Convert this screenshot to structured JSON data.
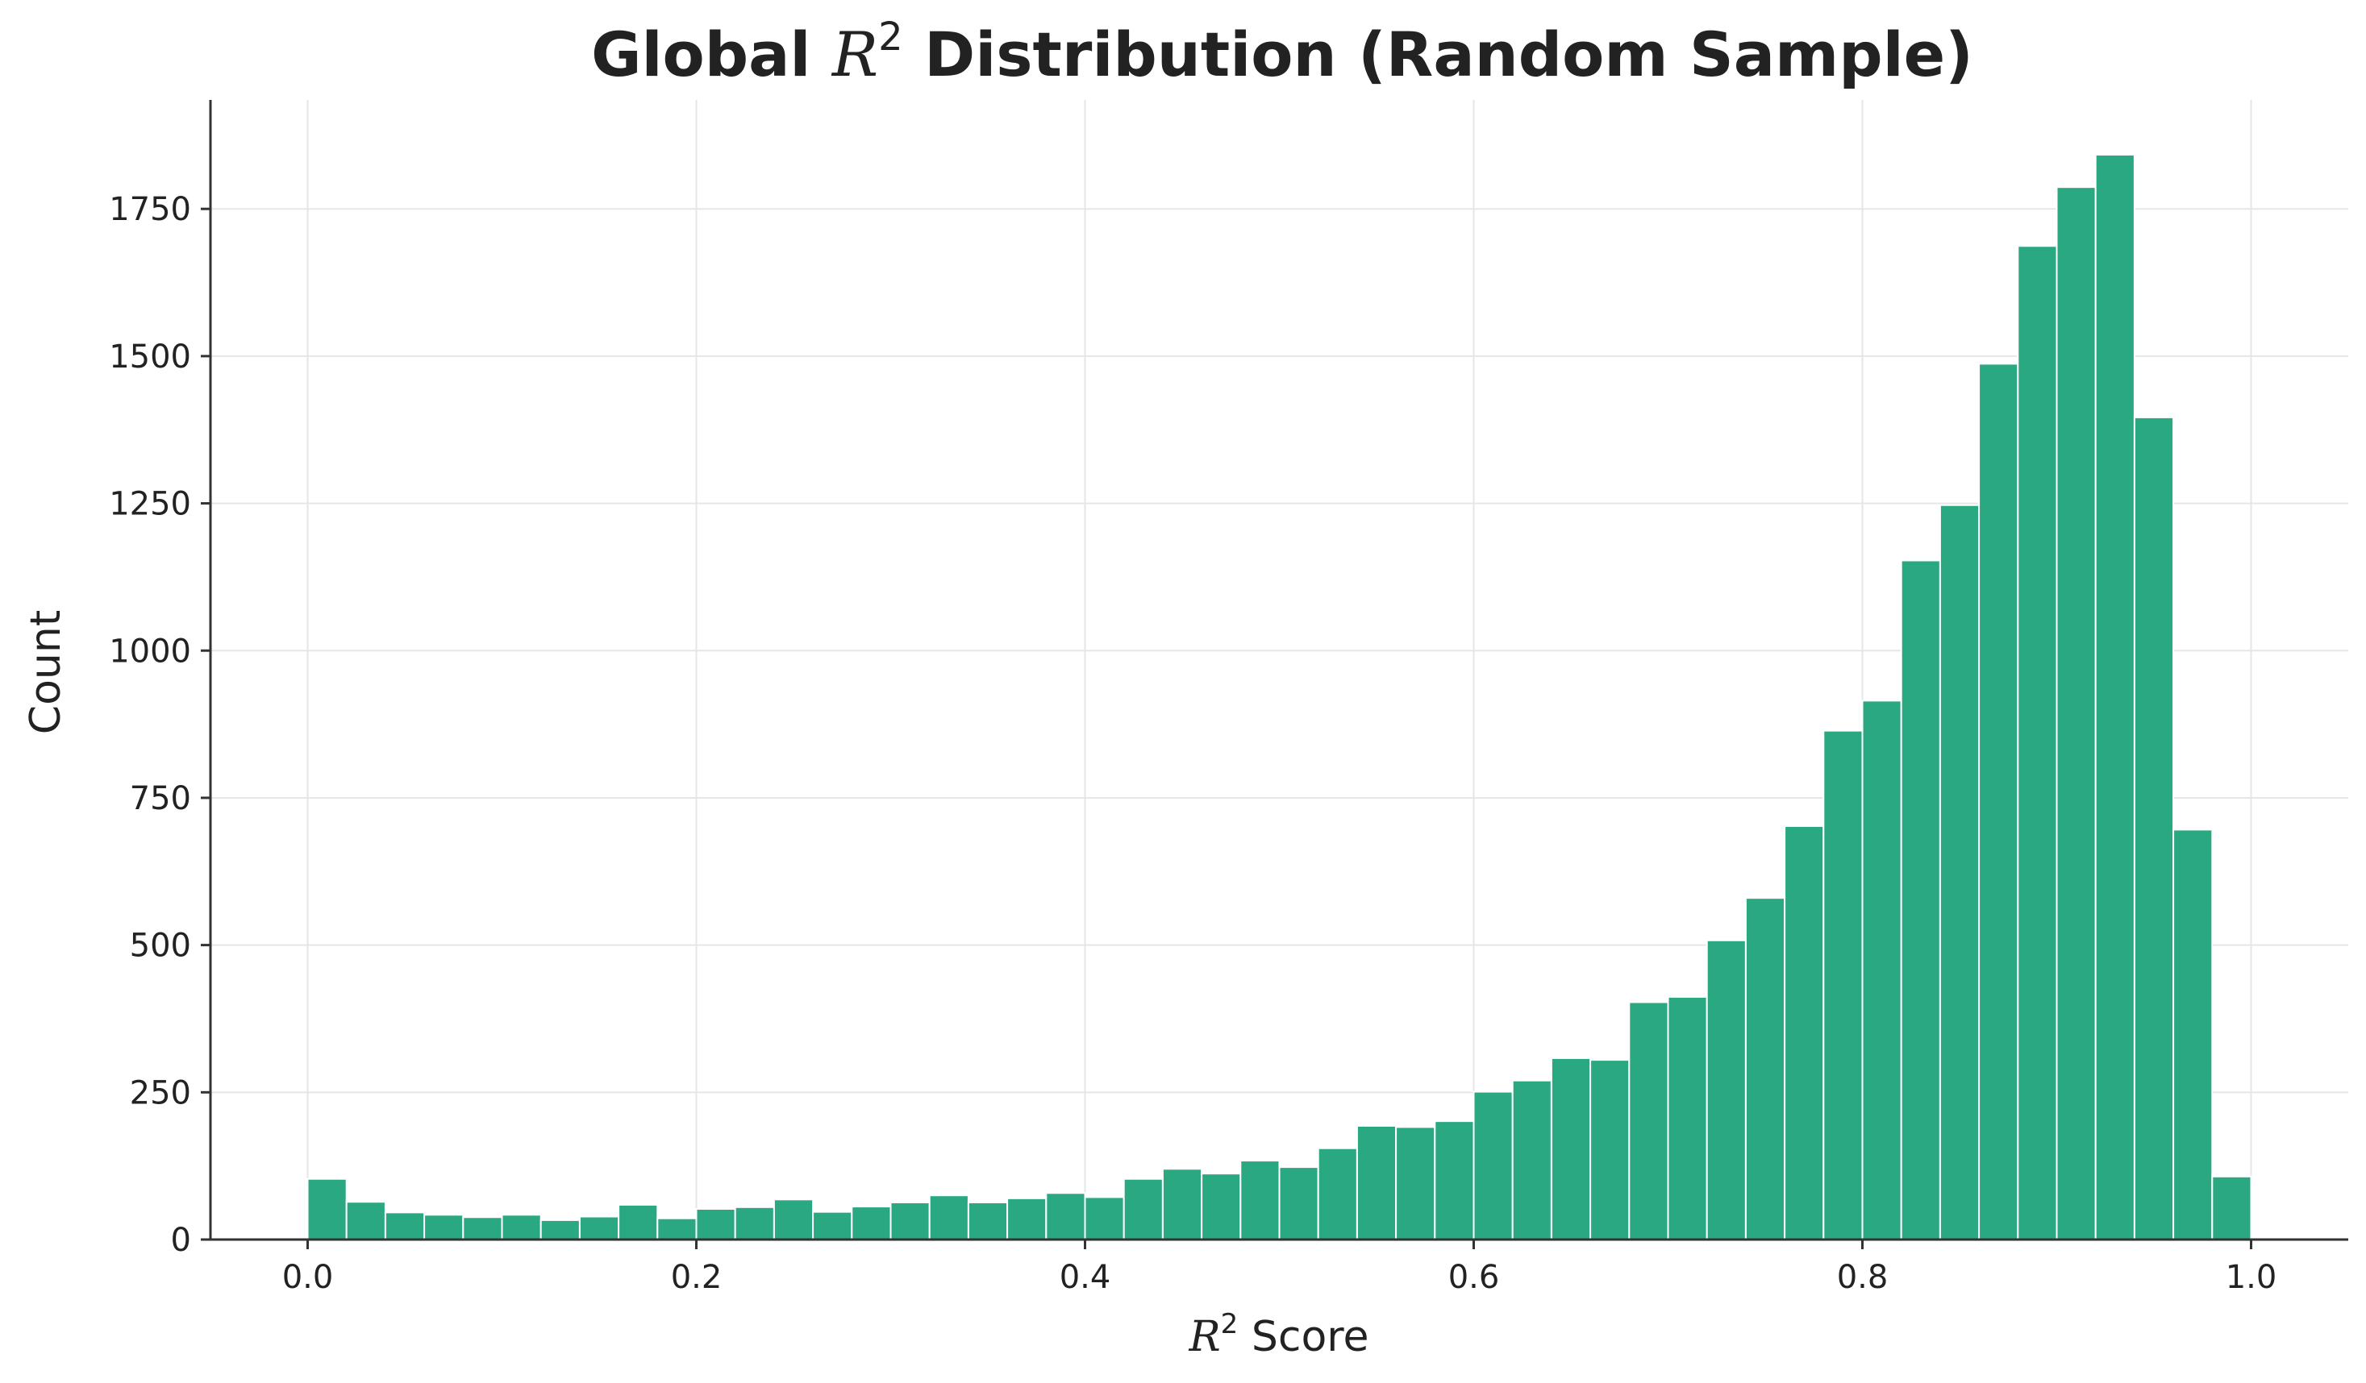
{
  "chart_data": {
    "type": "bar",
    "title_prefix": "Global ",
    "title_symbol": "R",
    "title_superscript": "2",
    "title_suffix": " Distribution (Random Sample)",
    "xlabel_symbol": "R",
    "xlabel_superscript": "2",
    "xlabel_suffix": " Score",
    "ylabel": "Count",
    "xlim": [
      -0.05,
      1.05
    ],
    "ylim": [
      0,
      1935
    ],
    "xticks": [
      "0.0",
      "0.2",
      "0.4",
      "0.6",
      "0.8",
      "1.0"
    ],
    "xtick_values": [
      0.0,
      0.2,
      0.4,
      0.6,
      0.8,
      1.0
    ],
    "yticks": [
      "0",
      "250",
      "500",
      "750",
      "1000",
      "1250",
      "1500",
      "1750"
    ],
    "ytick_values": [
      0,
      250,
      500,
      750,
      1000,
      1250,
      1500,
      1750
    ],
    "grid": true,
    "bar_color": "#2aa882",
    "bin_width": 0.02,
    "bin_starts": [
      0.0,
      0.02,
      0.04,
      0.06,
      0.08,
      0.1,
      0.12,
      0.14,
      0.16,
      0.18,
      0.2,
      0.22,
      0.24,
      0.26,
      0.28,
      0.3,
      0.32,
      0.34,
      0.36,
      0.38,
      0.4,
      0.42,
      0.44,
      0.46,
      0.48,
      0.5,
      0.52,
      0.54,
      0.56,
      0.58,
      0.6,
      0.62,
      0.64,
      0.66,
      0.68,
      0.7,
      0.72,
      0.74,
      0.76,
      0.78,
      0.8,
      0.82,
      0.84,
      0.86,
      0.88,
      0.9,
      0.92,
      0.94,
      0.96,
      0.98
    ],
    "values": [
      103,
      64,
      46,
      42,
      38,
      42,
      33,
      39,
      59,
      36,
      52,
      55,
      68,
      47,
      56,
      63,
      75,
      63,
      70,
      79,
      72,
      103,
      120,
      112,
      134,
      123,
      155,
      193,
      191,
      201,
      251,
      270,
      308,
      305,
      403,
      412,
      508,
      580,
      702,
      864,
      915,
      1153,
      1247,
      1487,
      1687,
      1787,
      1842,
      1396,
      696,
      107
    ]
  }
}
